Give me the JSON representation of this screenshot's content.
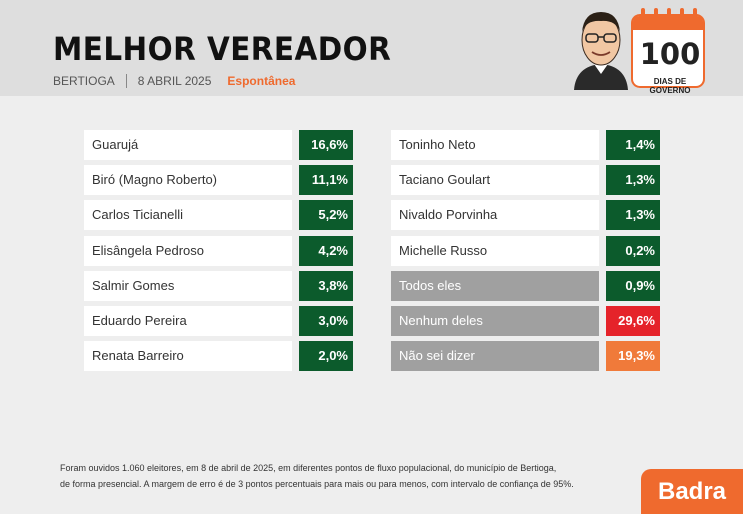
{
  "header": {
    "title": "MELHOR VEREADOR",
    "city": "BERTIOGA",
    "date": "8 ABRIL 2025",
    "kind": "Espontânea"
  },
  "badge": {
    "number": "100",
    "label": "DIAS DE GOVERNO"
  },
  "chart_data": {
    "type": "table",
    "title": "MELHOR VEREADOR",
    "subtitle": "Espontânea",
    "columns": [
      {
        "rows": [
          {
            "label": "Guarujá",
            "value": 16.6,
            "display": "16,6%"
          },
          {
            "label": "Biró (Magno Roberto)",
            "value": 11.1,
            "display": "11,1%"
          },
          {
            "label": "Carlos Ticianelli",
            "value": 5.2,
            "display": "5,2%"
          },
          {
            "label": "Elisângela Pedroso",
            "value": 4.2,
            "display": "4,2%"
          },
          {
            "label": "Salmir Gomes",
            "value": 3.8,
            "display": "3,8%"
          },
          {
            "label": "Eduardo Pereira",
            "value": 3.0,
            "display": "3,0%"
          },
          {
            "label": "Renata Barreiro",
            "value": 2.0,
            "display": "2,0%"
          }
        ]
      },
      {
        "rows": [
          {
            "label": "Toninho Neto",
            "value": 1.4,
            "display": "1,4%"
          },
          {
            "label": "Taciano Goulart",
            "value": 1.3,
            "display": "1,3%"
          },
          {
            "label": "Nivaldo Porvinha",
            "value": 1.3,
            "display": "1,3%"
          },
          {
            "label": "Michelle Russo",
            "value": 0.2,
            "display": "0,2%"
          },
          {
            "label": "Todos eles",
            "value": 0.9,
            "display": "0,9%",
            "category": "other"
          },
          {
            "label": "Nenhum deles",
            "value": 29.6,
            "display": "29,6%",
            "category": "none"
          },
          {
            "label": "Não sei dizer",
            "value": 19.3,
            "display": "19,3%",
            "category": "unknown"
          }
        ]
      }
    ],
    "colors": {
      "candidate_value": "#0c5b2c",
      "other_value": "#0c5b2c",
      "none_value": "#e5232a",
      "unknown_value": "#f07a3a",
      "option_label": "#a0a0a0"
    }
  },
  "footer": {
    "note_line1": "Foram ouvidos 1.060 eleitores, em 8 de abril de 2025, em diferentes pontos de fluxo populacional, do município de Bertioga,",
    "note_line2": "de forma presencial. A margem de erro é de 3 pontos percentuais para mais ou para menos, com intervalo de confiança de 95%.",
    "logo": "Badra"
  }
}
